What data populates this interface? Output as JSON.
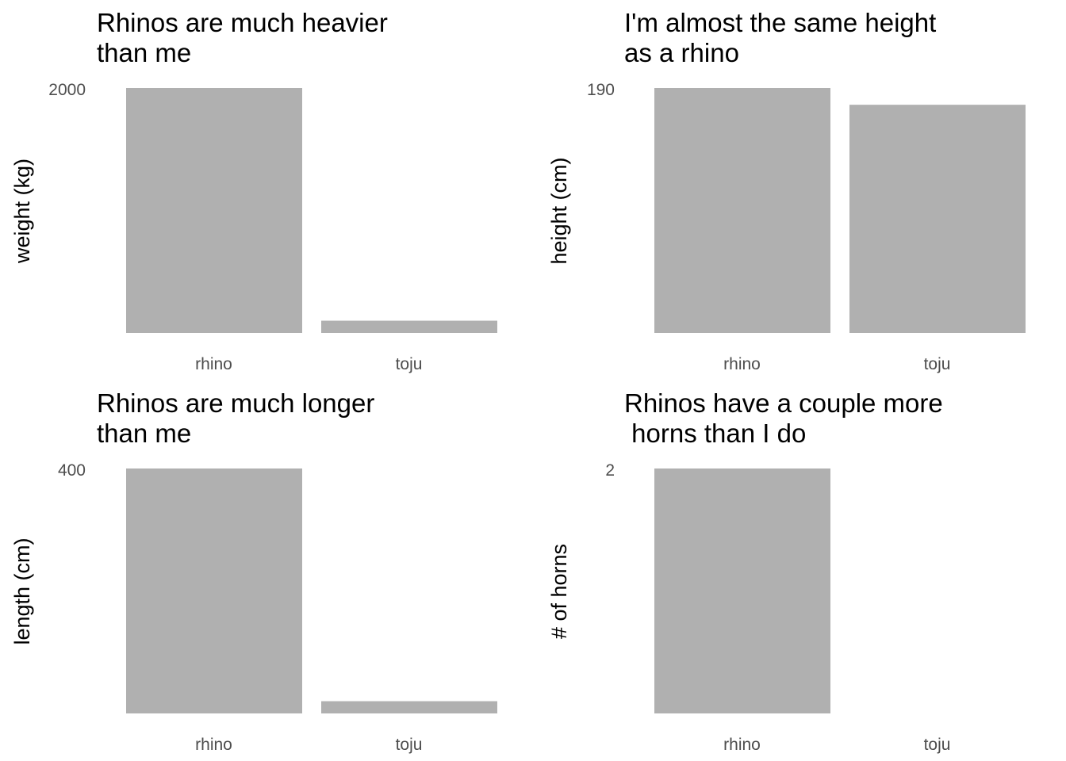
{
  "colors": {
    "bar": "#b0b0b0",
    "background": "#ffffff"
  },
  "chart_data": [
    {
      "type": "bar",
      "title": [
        "Rhinos are much heavier",
        "than me"
      ],
      "ylabel": "weight (kg)",
      "categories": [
        "rhino",
        "toju"
      ],
      "values": [
        2000,
        100
      ],
      "ylim": [
        0,
        2000
      ],
      "yticks": [
        "2000"
      ],
      "grid": false
    },
    {
      "type": "bar",
      "title": [
        "I'm almost the same height",
        "as a rhino"
      ],
      "ylabel": "height (cm)",
      "categories": [
        "rhino",
        "toju"
      ],
      "values": [
        190,
        177
      ],
      "ylim": [
        0,
        190
      ],
      "yticks": [
        "190"
      ],
      "grid": false
    },
    {
      "type": "bar",
      "title": [
        "Rhinos are much longer",
        "than me"
      ],
      "ylabel": "length (cm)",
      "categories": [
        "rhino",
        "toju"
      ],
      "values": [
        400,
        20
      ],
      "ylim": [
        0,
        400
      ],
      "yticks": [
        "400"
      ],
      "grid": false
    },
    {
      "type": "bar",
      "title": [
        "Rhinos have a couple more",
        " horns than I do"
      ],
      "ylabel": "# of horns",
      "categories": [
        "rhino",
        "toju"
      ],
      "values": [
        2,
        0
      ],
      "ylim": [
        0,
        2
      ],
      "yticks": [
        "2"
      ],
      "grid": false
    }
  ]
}
